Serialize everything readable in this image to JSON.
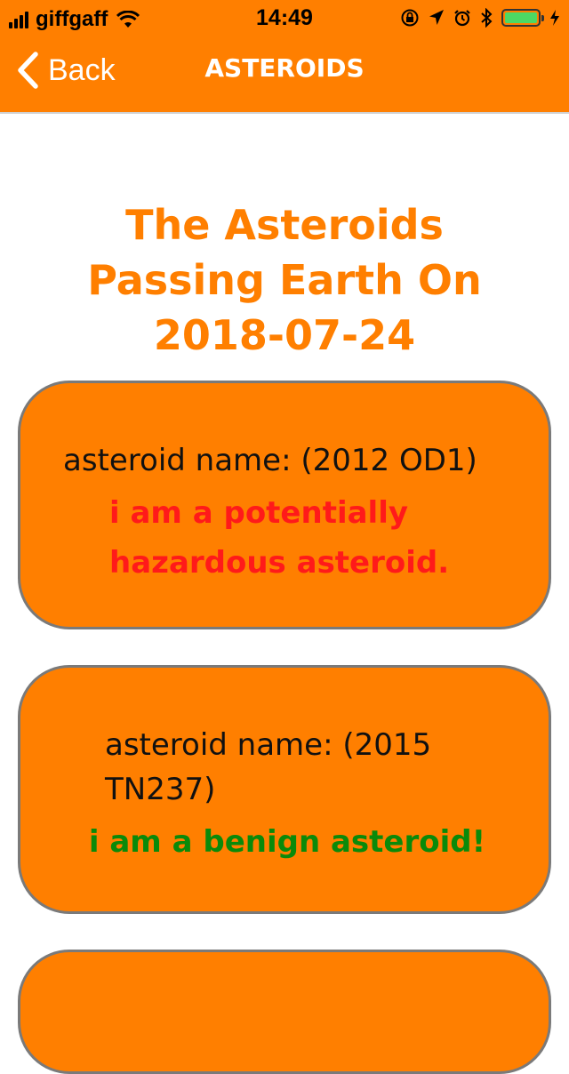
{
  "status_bar": {
    "carrier": "giffgaff",
    "time": "14:49"
  },
  "nav": {
    "back_label": "Back",
    "title": "ASTEROIDS"
  },
  "page": {
    "heading": "The Asteroids passing Earth on 2018-07-24"
  },
  "asteroids": [
    {
      "name": "asteroid name: (2012 OD1)",
      "status": "i am a potentially hazardous asteroid."
    },
    {
      "name": "asteroid name: (2015 TN237)",
      "status": "i am a benign asteroid!"
    }
  ],
  "colors": {
    "accent": "#ff7f00",
    "hazardous": "#ff1a1a",
    "benign": "#0a8a0a",
    "battery": "#4cd964"
  },
  "icons": {
    "signal": "signal-bars-icon",
    "wifi": "wifi-icon",
    "rotation_lock": "rotation-lock-icon",
    "location": "location-arrow-icon",
    "alarm": "alarm-clock-icon",
    "bluetooth": "bluetooth-icon",
    "battery": "battery-icon",
    "charging": "charging-bolt-icon",
    "back": "chevron-left-icon"
  }
}
